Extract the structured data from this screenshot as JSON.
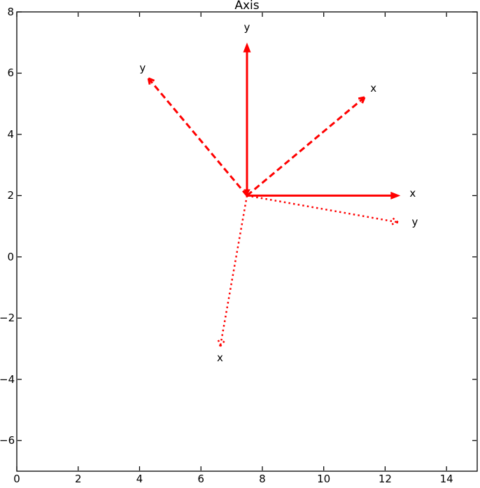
{
  "figure": {
    "background": "#ffffff",
    "axis_color": "#000000",
    "text_color": "#000000",
    "frame_color": "#ff0000"
  },
  "chart_data": {
    "type": "quiver",
    "title": "Axis",
    "xlabel": "",
    "ylabel": "",
    "xlim": [
      0,
      15
    ],
    "ylim": [
      -7,
      8
    ],
    "xticks": [
      0,
      2,
      4,
      6,
      8,
      10,
      12,
      14
    ],
    "xtick_labels": [
      "0",
      "2",
      "4",
      "6",
      "8",
      "10",
      "12",
      "14"
    ],
    "yticks": [
      -6,
      -4,
      -2,
      0,
      2,
      4,
      6,
      8
    ],
    "ytick_labels": [
      "−6",
      "−4",
      "−2",
      "0",
      "2",
      "4",
      "6",
      "8"
    ],
    "grid": false,
    "legend_position": "none",
    "origin": [
      7.5,
      2
    ],
    "axis_length": 5,
    "frames": [
      {
        "name": "frame-solid",
        "line_style": "solid",
        "rotation_deg": 0,
        "arrows": [
          {
            "axis": "x",
            "from": [
              7.5,
              2
            ],
            "to": [
              12.5,
              2
            ],
            "label": "x",
            "label_at": [
              12.9,
              2.08
            ],
            "head": "filled",
            "base_head": false
          },
          {
            "axis": "y",
            "from": [
              7.5,
              2
            ],
            "to": [
              7.5,
              7
            ],
            "label": "y",
            "label_at": [
              7.5,
              7.5
            ],
            "head": "filled",
            "base_head": true
          }
        ]
      },
      {
        "name": "frame-dashed",
        "line_style": "dashed",
        "rotation_deg": 40,
        "arrows": [
          {
            "axis": "x",
            "from": [
              7.5,
              2
            ],
            "to": [
              11.33,
              5.21
            ],
            "label": "x",
            "label_at": [
              11.62,
              5.5
            ],
            "head": "open",
            "base_head": false
          },
          {
            "axis": "y",
            "from": [
              7.5,
              2
            ],
            "to": [
              4.29,
              5.83
            ],
            "label": "y",
            "label_at": [
              4.1,
              6.17
            ],
            "head": "open",
            "base_head": false
          }
        ]
      },
      {
        "name": "frame-dotted",
        "line_style": "dotted",
        "rotation_deg": -100,
        "arrows": [
          {
            "axis": "x",
            "from": [
              7.5,
              2
            ],
            "to": [
              6.63,
              -2.92
            ],
            "label": "x",
            "label_at": [
              6.62,
              -3.3
            ],
            "head": "open",
            "base_head": false
          },
          {
            "axis": "y",
            "from": [
              7.5,
              2
            ],
            "to": [
              12.42,
              1.13
            ],
            "label": "y",
            "label_at": [
              12.97,
              1.13
            ],
            "head": "open",
            "base_head": false
          }
        ]
      }
    ]
  }
}
